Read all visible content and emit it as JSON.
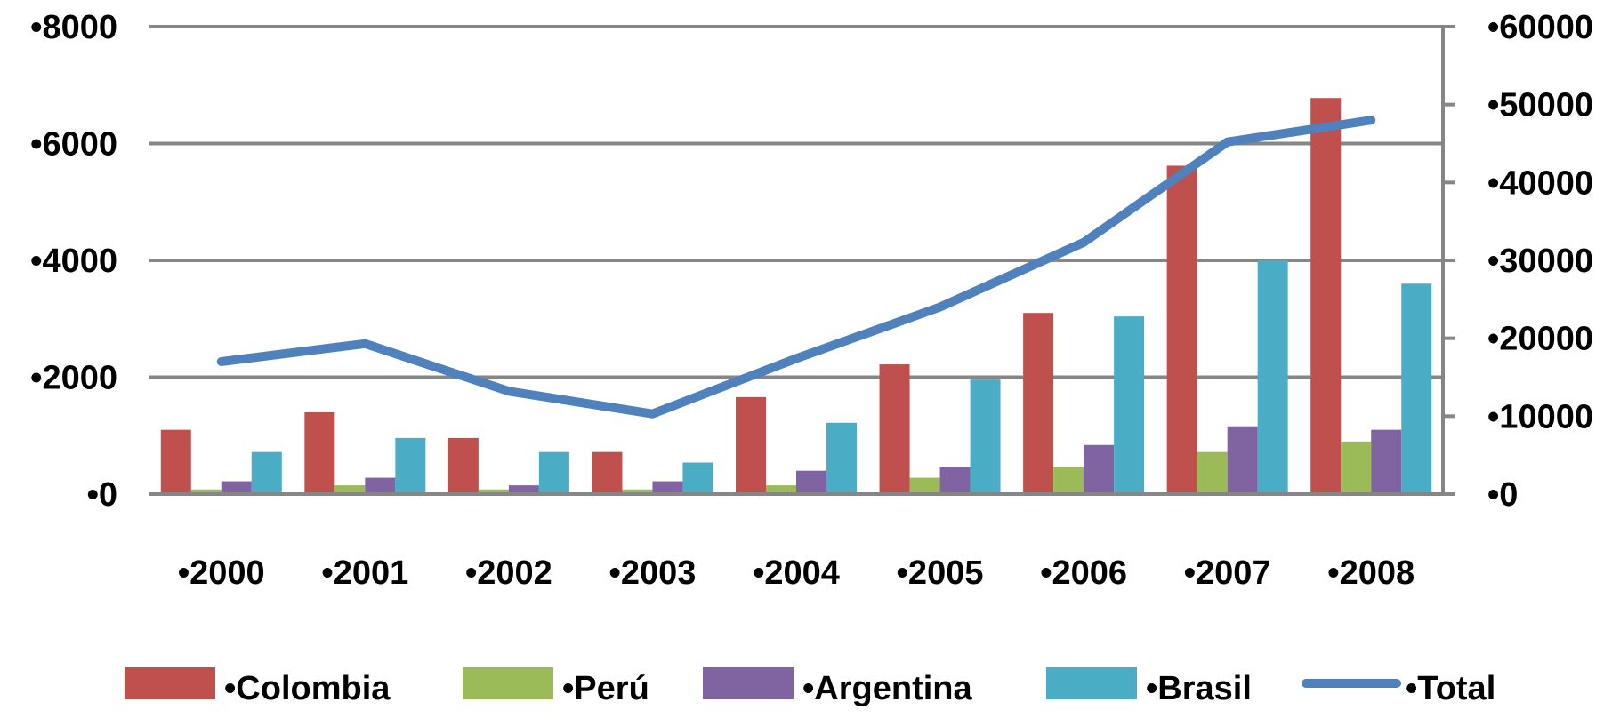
{
  "chart_data": {
    "type": "bar",
    "categories": [
      "•2000",
      "•2001",
      "•2002",
      "•2003",
      "•2004",
      "•2005",
      "•2006",
      "•2007",
      "•2008"
    ],
    "series": [
      {
        "name": "•Colombia",
        "axis": "left",
        "type": "bar",
        "color": "#C0504D",
        "values": [
          1100,
          1400,
          960,
          720,
          1660,
          2220,
          3100,
          5620,
          6780
        ]
      },
      {
        "name": "•Perú",
        "axis": "left",
        "type": "bar",
        "color": "#9BBB59",
        "values": [
          80,
          150,
          80,
          80,
          150,
          280,
          460,
          720,
          900
        ]
      },
      {
        "name": "•Argentina",
        "axis": "left",
        "type": "bar",
        "color": "#8064A2",
        "values": [
          220,
          280,
          150,
          220,
          400,
          460,
          840,
          1160,
          1100
        ]
      },
      {
        "name": "•Brasil",
        "axis": "left",
        "type": "bar",
        "color": "#4BACC6",
        "values": [
          720,
          960,
          720,
          540,
          1220,
          1960,
          3040,
          4000,
          3600
        ]
      },
      {
        "name": "•Total",
        "axis": "right",
        "type": "line",
        "color": "#4F81BD",
        "values": [
          17000,
          19300,
          13200,
          10300,
          17400,
          24000,
          32300,
          45200,
          48000
        ]
      }
    ],
    "y_left": {
      "min": 0,
      "max": 8000,
      "ticks": [
        "•0",
        "•2000",
        "•4000",
        "•6000",
        "•8000"
      ],
      "tick_values": [
        0,
        2000,
        4000,
        6000,
        8000
      ]
    },
    "y_right": {
      "min": 0,
      "max": 60000,
      "ticks": [
        "•0",
        "•10000",
        "•20000",
        "•30000",
        "•40000",
        "•50000",
        "•60000"
      ],
      "tick_values": [
        0,
        10000,
        20000,
        30000,
        40000,
        50000,
        60000
      ]
    },
    "grid": true,
    "legend_position": "bottom",
    "gridline_color": "#868686"
  }
}
